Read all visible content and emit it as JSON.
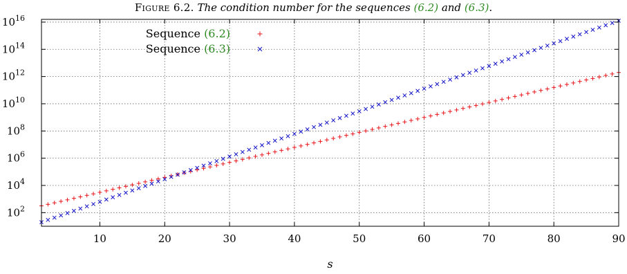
{
  "caption": {
    "prefix": "Figure 6.2.",
    "text_before": "The condition number for the sequences",
    "ref1": "(6.2)",
    "and": "and",
    "ref2": "(6.3)",
    "end": "."
  },
  "chart_data": {
    "type": "scatter",
    "title": "",
    "xlabel": "s",
    "ylabel": "",
    "xlim": [
      1,
      90
    ],
    "ylim_log10": [
      1,
      16.2
    ],
    "yscale": "log",
    "grid": true,
    "legend_position": "top-left",
    "x_ticks": [
      10,
      20,
      30,
      40,
      50,
      60,
      70,
      80,
      90
    ],
    "y_tick_exponents": [
      2,
      4,
      6,
      8,
      10,
      12,
      14,
      16
    ],
    "y_tick_base": "10",
    "series": [
      {
        "name_text": "Sequence ",
        "name_ref": "(6.2)",
        "marker": "plus",
        "color": "#e8161b",
        "x_range": [
          1,
          90
        ],
        "log10_y_at_x_start": 2.5,
        "log10_y_at_x_end": 12.3
      },
      {
        "name_text": "Sequence ",
        "name_ref": "(6.3)",
        "marker": "cross",
        "color": "#1313c8",
        "x_range": [
          1,
          90
        ],
        "log10_y_at_x_start": 1.3,
        "log10_y_at_x_end": 16.1
      }
    ]
  }
}
